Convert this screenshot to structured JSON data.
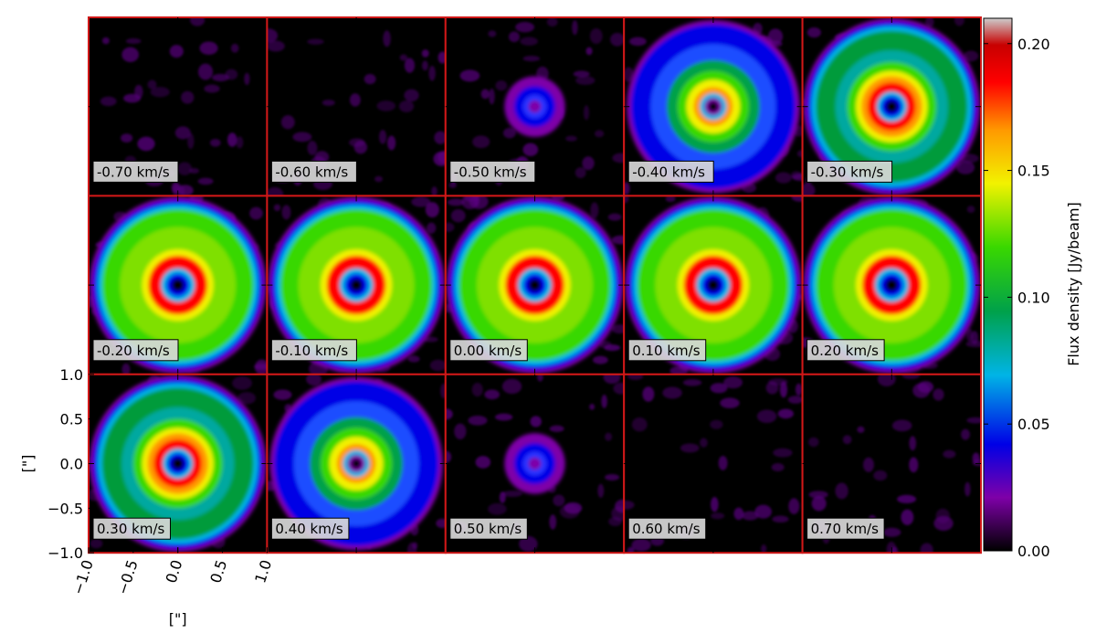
{
  "chart_data": {
    "type": "heatmap",
    "layout": {
      "rows": 3,
      "columns": 5
    },
    "panels": [
      {
        "label": "-0.70 km/s",
        "velocity": -0.7,
        "ring": "none"
      },
      {
        "label": "-0.60 km/s",
        "velocity": -0.6,
        "ring": "none"
      },
      {
        "label": "-0.50 km/s",
        "velocity": -0.5,
        "ring": "small"
      },
      {
        "label": "-0.40 km/s",
        "velocity": -0.4,
        "ring": "medium"
      },
      {
        "label": "-0.30 km/s",
        "velocity": -0.3,
        "ring": "bright"
      },
      {
        "label": "-0.20 km/s",
        "velocity": -0.2,
        "ring": "peak"
      },
      {
        "label": "-0.10 km/s",
        "velocity": -0.1,
        "ring": "peak"
      },
      {
        "label": "0.00 km/s",
        "velocity": 0.0,
        "ring": "peak"
      },
      {
        "label": "0.10 km/s",
        "velocity": 0.1,
        "ring": "peak"
      },
      {
        "label": "0.20 km/s",
        "velocity": 0.2,
        "ring": "peak"
      },
      {
        "label": "0.30 km/s",
        "velocity": 0.3,
        "ring": "bright"
      },
      {
        "label": "0.40 km/s",
        "velocity": 0.4,
        "ring": "medium"
      },
      {
        "label": "0.50 km/s",
        "velocity": 0.5,
        "ring": "small"
      },
      {
        "label": "0.60 km/s",
        "velocity": 0.6,
        "ring": "none"
      },
      {
        "label": "0.70 km/s",
        "velocity": 0.7,
        "ring": "none"
      }
    ],
    "xaxis": {
      "label": "[\"]",
      "range": [
        -1.0,
        1.0
      ],
      "ticks": [
        -1.0,
        -0.5,
        0.0,
        0.5,
        1.0
      ],
      "tick_labels": [
        "−1.0",
        "−0.5",
        "0.0",
        "0.5",
        "1.0"
      ]
    },
    "yaxis": {
      "label": "[\"]",
      "range": [
        -1.0,
        1.0
      ],
      "ticks": [
        1.0,
        0.5,
        0.0,
        -0.5,
        -1.0
      ],
      "tick_labels": [
        "1.0",
        "0.5",
        "0.0",
        "−0.5",
        "−1.0"
      ]
    },
    "colorbar": {
      "label": "Flux density [Jy/beam]",
      "range": [
        0.0,
        0.21
      ],
      "ticks": [
        0.2,
        0.15,
        0.1,
        0.05,
        0.0
      ],
      "tick_labels": [
        "0.20",
        "0.15",
        "0.10",
        "0.05",
        "0.00"
      ],
      "colormap": [
        "#000000",
        "#7e00a8",
        "#0000e6",
        "#00b4e6",
        "#00a14a",
        "#39d800",
        "#f2f200",
        "#ff9900",
        "#ff0000",
        "#c80000",
        "#cccccc"
      ]
    },
    "frame_color": "#d01818"
  }
}
